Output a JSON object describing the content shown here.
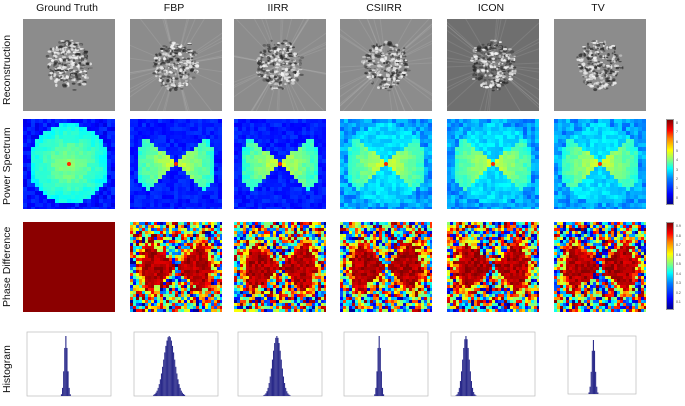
{
  "columns": [
    "Ground Truth",
    "FBP",
    "IIRR",
    "CSIIRR",
    "ICON",
    "TV"
  ],
  "rows": [
    "Reconstruction",
    "Power Spectrum",
    "Phase Difference",
    "Histogram"
  ],
  "colors": {
    "background_gray": "#8c8c8c",
    "icon_gray": "#6f6f6f",
    "phase_gt": "#8b0000",
    "histogram_bar": "#2a2a8a"
  },
  "colorbar_power": {
    "ticks": [
      "8",
      "7",
      "6",
      "5",
      "4",
      "3",
      "2",
      "1",
      "0"
    ]
  },
  "colorbar_phase": {
    "ticks": [
      "0.9",
      "0.8",
      "0.7",
      "0.6",
      "0.5",
      "0.4",
      "0.3",
      "0.2",
      "0.1"
    ]
  }
}
